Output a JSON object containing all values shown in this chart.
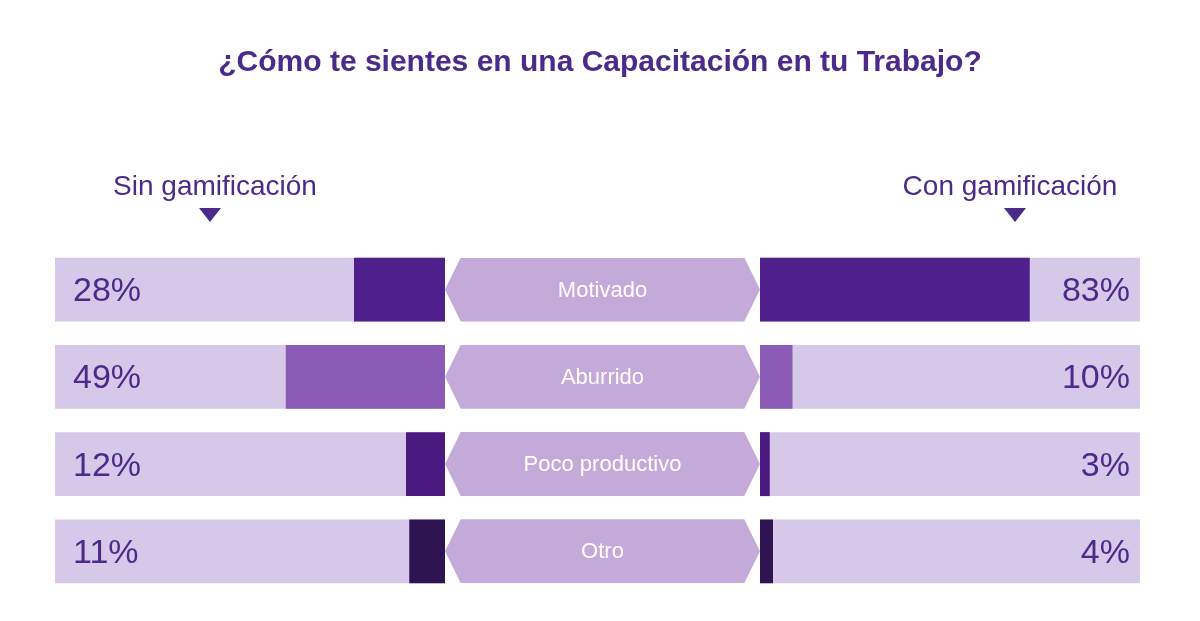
{
  "chart_data": [
    {
      "type": "bar",
      "orientation": "horizontal",
      "title": "¿Cómo te sientes en una Capacitación en tu Trabajo?",
      "categories": [
        "Motivado",
        "Aburrido",
        "Poco productivo",
        "Otro"
      ],
      "tick_labels": "y",
      "legend": "top",
      "series": [
        {
          "name": "Sin gamificación",
          "color": "#4b2a8a",
          "colors": [
            "#4f1f8c",
            "#8a5cb5",
            "#4a1a80",
            "#2e1450"
          ],
          "values": [
            28,
            49,
            12,
            11
          ],
          "value_labels": [
            "28%",
            "49%",
            "12%",
            "11%"
          ]
        }
      ]
    },
    {
      "type": "bar",
      "orientation": "horizontal",
      "categories": [
        null,
        null,
        null,
        null
      ],
      "tick_labels": false,
      "legend": "top",
      "series": [
        {
          "name": "Con gamificación",
          "color": "#4b2a8a",
          "colors": [
            "#4f1f8c",
            "#8a5cb5",
            "#4a1a80",
            "#2e1450"
          ],
          "values": [
            83,
            10,
            3,
            4
          ],
          "value_labels": [
            "83%",
            "10%",
            "3%",
            "4%"
          ]
        }
      ]
    }
  ]
}
